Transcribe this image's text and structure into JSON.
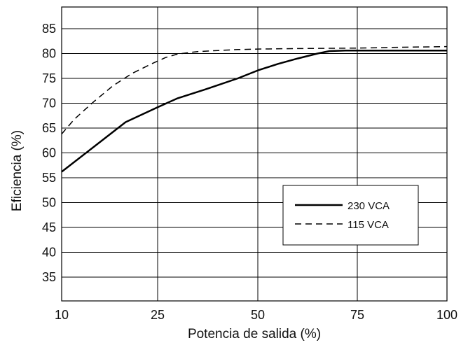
{
  "chart_data": {
    "type": "line",
    "xlabel": "Potencia de salida (%)",
    "ylabel": "Eficiencia  (%)",
    "x_ticks": [
      10,
      25,
      50,
      75,
      100
    ],
    "y_ticks": [
      35,
      40,
      45,
      50,
      55,
      60,
      65,
      70,
      75,
      80,
      85
    ],
    "xlim": [
      10,
      100
    ],
    "ylim": [
      30,
      90
    ],
    "grid": true,
    "legend_position": "lower-right",
    "series": [
      {
        "name": "230 VCA",
        "style": "solid",
        "color": "#000000",
        "points": [
          [
            10,
            56.2
          ],
          [
            15,
            61.2
          ],
          [
            20,
            66.2
          ],
          [
            25,
            69.2
          ],
          [
            30,
            71.0
          ],
          [
            37,
            72.8
          ],
          [
            45,
            75.0
          ],
          [
            50,
            76.6
          ],
          [
            55,
            77.9
          ],
          [
            60,
            79.0
          ],
          [
            65,
            80.0
          ],
          [
            68,
            80.5
          ],
          [
            72,
            80.6
          ],
          [
            80,
            80.6
          ],
          [
            90,
            80.6
          ],
          [
            100,
            80.6
          ]
        ]
      },
      {
        "name": "115 VCA",
        "style": "dashed",
        "color": "#000000",
        "points": [
          [
            10,
            63.8
          ],
          [
            12,
            66.8
          ],
          [
            15,
            70.3
          ],
          [
            18,
            73.5
          ],
          [
            21,
            76.0
          ],
          [
            24,
            77.9
          ],
          [
            27,
            79.2
          ],
          [
            30,
            79.9
          ],
          [
            35,
            80.4
          ],
          [
            40,
            80.6
          ],
          [
            45,
            80.8
          ],
          [
            50,
            80.9
          ],
          [
            60,
            81.0
          ],
          [
            75,
            81.1
          ],
          [
            90,
            81.3
          ],
          [
            100,
            81.4
          ]
        ]
      }
    ]
  }
}
